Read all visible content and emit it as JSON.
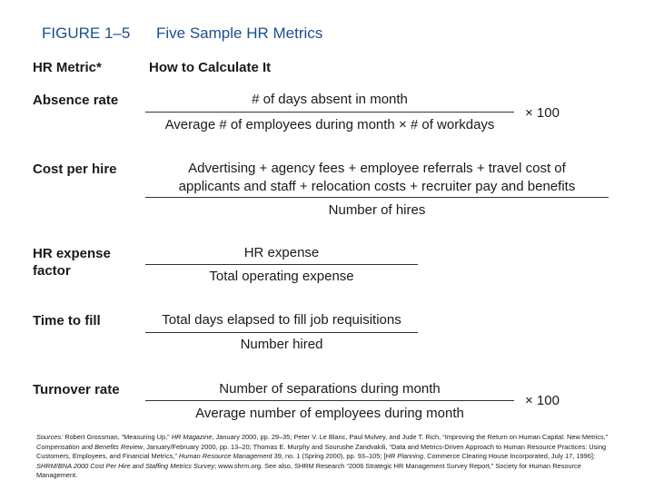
{
  "figure": {
    "label": "FIGURE 1–5",
    "title": "Five Sample HR Metrics"
  },
  "headers": {
    "metric": "HR Metric*",
    "calc": "How to Calculate It"
  },
  "metrics": {
    "absence": {
      "name": "Absence rate",
      "numerator": "# of days absent in month",
      "denominator": "Average # of employees during month × # of workdays",
      "multiplier": "× 100"
    },
    "cost_per_hire": {
      "name": "Cost per hire",
      "numerator_line1": "Advertising + agency fees + employee referrals + travel cost of",
      "numerator_line2": "applicants and staff + relocation costs + recruiter pay and benefits",
      "denominator": "Number of hires"
    },
    "hr_expense": {
      "name_line1": "HR expense",
      "name_line2": "factor",
      "numerator": "HR expense",
      "denominator": "Total operating expense"
    },
    "time_to_fill": {
      "name": "Time to fill",
      "numerator": "Total days elapsed to fill job requisitions",
      "denominator": "Number hired"
    },
    "turnover": {
      "name": "Turnover rate",
      "numerator": "Number of separations during month",
      "denominator": "Average number of employees during month",
      "multiplier": "× 100"
    }
  },
  "sources": {
    "s1": "Sources:",
    "s2": " Robert Grossman, “Measuring Up,” ",
    "s3": "HR Magazine",
    "s4": ", January 2000, pp. 29–35; Peter V. Le Blanc, Paul Mulvey, and Jude T. Rich, “Improving the Return on Human Capital: New Metrics,” ",
    "s5": "Compensation and Benefits Review",
    "s6": ", January/February 2000, pp. 13–20; Thomas E. Murphy and Sourushe Zandvakili, “Data and Metrics-Driven Approach to Human Resource Practices: Using Customers, Employees, and Financial Metrics,” ",
    "s7": "Human Resource Management",
    "s8": " 39, no. 1 (Spring 2000), pp. 93–105; [",
    "s9": "HR Planning",
    "s10": ", Commerce Clearing House Incorporated, July 17, 1996]; ",
    "s11": "SHRM/BNA 2000 Cost Per Hire and Staffing Metrics Survey",
    "s12": "; www.shrm.org. See also, SHRM Research “2006 Strategic HR Management Survey Report,” Society for Human Resource Management."
  }
}
